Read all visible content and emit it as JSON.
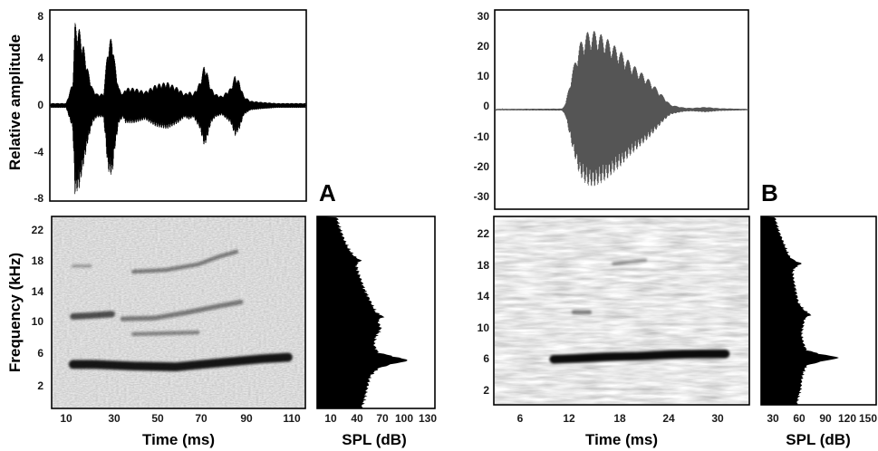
{
  "panels": [
    {
      "label": "A",
      "waveform": {
        "ylabel": "Relative amplitude",
        "yticks": [
          "8",
          "4",
          "0",
          "-4",
          "-8"
        ],
        "ylim": [
          -8,
          8
        ]
      },
      "spectrogram": {
        "xlabel": "Time (ms)",
        "ylabel": "Frequency (kHz)",
        "xticks": [
          "10",
          "30",
          "50",
          "70",
          "90",
          "110"
        ],
        "yticks": [
          "22",
          "18",
          "14",
          "10",
          "6",
          "2"
        ]
      },
      "spectrum": {
        "xlabel": "SPL (dB)",
        "xticks": [
          "10",
          "40",
          "70",
          "100",
          "130"
        ]
      }
    },
    {
      "label": "B",
      "waveform": {
        "ylabel": "",
        "yticks": [
          "30",
          "20",
          "10",
          "0",
          "-10",
          "-20",
          "-30"
        ],
        "ylim": [
          -30,
          30
        ]
      },
      "spectrogram": {
        "xlabel": "Time (ms)",
        "ylabel": "",
        "xticks": [
          "6",
          "12",
          "18",
          "24",
          "30"
        ],
        "yticks": [
          "22",
          "18",
          "14",
          "10",
          "6",
          "2"
        ]
      },
      "spectrum": {
        "xlabel": "SPL (dB)",
        "xticks": [
          "30",
          "60",
          "90",
          "120",
          "150"
        ]
      }
    }
  ],
  "chart_data": [
    {
      "type": "line",
      "panel": "A",
      "subplot": "waveform",
      "xlabel": "Time (ms)",
      "ylabel": "Relative amplitude",
      "xlim": [
        2,
        118
      ],
      "ylim": [
        -8,
        8
      ],
      "envelope_x": [
        2,
        9,
        12,
        13,
        15,
        17,
        19,
        21,
        23,
        26,
        27,
        28,
        30,
        31,
        33,
        35,
        36,
        40,
        45,
        50,
        55,
        60,
        63,
        65,
        67,
        70,
        72,
        73,
        75,
        77,
        80,
        84,
        86,
        88,
        90,
        93,
        98,
        105,
        118
      ],
      "envelope_top": [
        0.2,
        0.2,
        2,
        7,
        6.5,
        5,
        3,
        1.5,
        1,
        1,
        3,
        5,
        6,
        4,
        1.5,
        1,
        1.5,
        1.5,
        1.2,
        1.8,
        2,
        1.5,
        1,
        1.2,
        1,
        2,
        3.5,
        3,
        1.5,
        1,
        0.8,
        1.5,
        2.6,
        2,
        0.8,
        0.4,
        0.3,
        0.2,
        0.2
      ],
      "envelope_bottom": [
        -0.2,
        -0.2,
        -2,
        -7.5,
        -7,
        -5,
        -3,
        -1.5,
        -1,
        -1,
        -3,
        -5.5,
        -6,
        -4,
        -1.5,
        -1,
        -1.5,
        -1.5,
        -1.2,
        -1.8,
        -2,
        -1.5,
        -1,
        -1.2,
        -1,
        -2,
        -3.5,
        -3,
        -1.5,
        -1,
        -0.8,
        -1.5,
        -2.6,
        -2,
        -0.8,
        -0.4,
        -0.3,
        -0.2,
        -0.2
      ]
    },
    {
      "type": "heatmap",
      "panel": "A",
      "subplot": "spectrogram",
      "xlabel": "Time (ms)",
      "ylabel": "Frequency (kHz)",
      "xlim": [
        2,
        120
      ],
      "ylim": [
        0,
        24
      ],
      "bands": [
        {
          "x": [
            12,
            22,
            40,
            60,
            80,
            100,
            112
          ],
          "y": [
            5.5,
            5.5,
            5.3,
            5.2,
            5.7,
            6.2,
            6.4
          ],
          "width": 1.1,
          "intensity": 0.9
        },
        {
          "x": [
            12,
            20,
            30
          ],
          "y": [
            11.5,
            11.6,
            11.8
          ],
          "width": 0.8,
          "intensity": 0.65
        },
        {
          "x": [
            35,
            50,
            65,
            80,
            90
          ],
          "y": [
            11.2,
            11.3,
            12.0,
            12.8,
            13.3
          ],
          "width": 0.6,
          "intensity": 0.45
        },
        {
          "x": [
            40,
            55,
            70
          ],
          "y": [
            9.3,
            9.4,
            9.5
          ],
          "width": 0.5,
          "intensity": 0.4
        },
        {
          "x": [
            40,
            55,
            70,
            80,
            88
          ],
          "y": [
            17.1,
            17.3,
            18.0,
            19.0,
            19.6
          ],
          "width": 0.5,
          "intensity": 0.45
        },
        {
          "x": [
            12,
            20
          ],
          "y": [
            17.8,
            17.8
          ],
          "width": 0.4,
          "intensity": 0.3
        }
      ]
    },
    {
      "type": "area",
      "panel": "A",
      "subplot": "spectrum",
      "xlabel": "SPL (dB)",
      "ylabel": "Frequency (kHz)",
      "xlim": [
        10,
        130
      ],
      "ylim": [
        0,
        24
      ],
      "freq": [
        0,
        1,
        2,
        3,
        4,
        5,
        5.5,
        6,
        6.5,
        7,
        8,
        9,
        9.5,
        10,
        11,
        11.5,
        12,
        13,
        14,
        15,
        16,
        17,
        18,
        18.5,
        19,
        20,
        21,
        22,
        23,
        24
      ],
      "spl": [
        55,
        58,
        60,
        62,
        64,
        72,
        85,
        104,
        88,
        72,
        68,
        70,
        73,
        75,
        72,
        78,
        70,
        66,
        62,
        58,
        55,
        52,
        50,
        55,
        48,
        42,
        38,
        35,
        32,
        30
      ]
    },
    {
      "type": "line",
      "panel": "B",
      "subplot": "waveform",
      "xlabel": "Time (ms)",
      "xlim": [
        0,
        36
      ],
      "ylim": [
        -30,
        30
      ],
      "envelope_x": [
        0,
        9.5,
        10,
        11,
        12,
        13,
        14,
        15,
        16,
        17,
        18,
        19,
        20,
        21,
        22,
        23,
        24,
        25,
        26,
        27,
        28,
        30,
        32,
        36
      ],
      "envelope_top": [
        0.2,
        0.3,
        2,
        12,
        20,
        23.5,
        24,
        23,
        21.5,
        19.5,
        17.5,
        15,
        13,
        11,
        9,
        6.5,
        4,
        1.5,
        1,
        0.6,
        0.5,
        0.8,
        0.4,
        0.2
      ],
      "envelope_bottom": [
        -0.2,
        -0.3,
        -2,
        -12,
        -20,
        -23,
        -23.5,
        -22.5,
        -21,
        -19,
        -17,
        -14.5,
        -12.5,
        -10.5,
        -8.5,
        -6,
        -3.5,
        -1.5,
        -1,
        -0.6,
        -0.5,
        -0.8,
        -0.4,
        -0.2
      ]
    },
    {
      "type": "heatmap",
      "panel": "B",
      "subplot": "spectrogram",
      "xlabel": "Time (ms)",
      "xlim": [
        2,
        34
      ],
      "ylim": [
        0,
        24
      ],
      "bands": [
        {
          "x": [
            9.5,
            12,
            16,
            20,
            24,
            28,
            31
          ],
          "y": [
            5.8,
            5.9,
            6.1,
            6.2,
            6.4,
            6.5,
            6.5
          ],
          "width": 1.1,
          "intensity": 0.95
        },
        {
          "x": [
            12,
            14
          ],
          "y": [
            11.8,
            11.8
          ],
          "width": 0.5,
          "intensity": 0.45
        },
        {
          "x": [
            17,
            19,
            21
          ],
          "y": [
            18.0,
            18.2,
            18.4
          ],
          "width": 0.4,
          "intensity": 0.35
        }
      ]
    },
    {
      "type": "area",
      "panel": "B",
      "subplot": "spectrum",
      "xlabel": "SPL (dB)",
      "ylabel": "Frequency (kHz)",
      "xlim": [
        15,
        160
      ],
      "ylim": [
        0,
        24
      ],
      "freq": [
        0,
        1,
        2,
        3,
        4,
        5,
        5.5,
        6,
        6.5,
        7,
        8,
        9,
        10,
        11,
        11.5,
        12,
        12.5,
        13,
        14,
        15,
        16,
        17,
        17.5,
        18,
        18.5,
        19,
        20,
        21,
        22,
        23,
        24
      ],
      "spl": [
        60,
        62,
        65,
        66,
        68,
        72,
        90,
        115,
        88,
        72,
        68,
        66,
        68,
        70,
        78,
        70,
        66,
        62,
        60,
        58,
        56,
        55,
        58,
        66,
        55,
        50,
        46,
        42,
        38,
        35,
        32
      ]
    }
  ]
}
